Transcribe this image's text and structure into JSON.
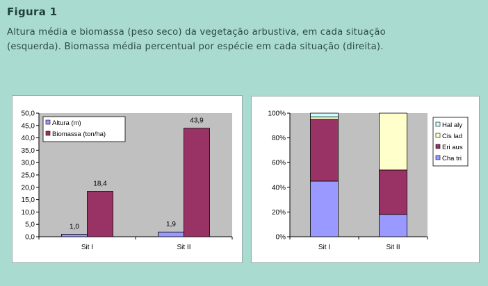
{
  "figure": {
    "title": "Figura 1",
    "caption_line1": "Altura média e biomassa (peso seco) da vegetação arbustiva, em cada situação",
    "caption_line2": "(esquerda). Biomassa média percentual por espécie em cada situação (direita)."
  },
  "colors": {
    "background": "#aadbd1",
    "plot_area": "#c0c0c0",
    "altura": "#9999ff",
    "biomassa": "#993366",
    "cha_tri": "#9999ff",
    "eri_aus": "#993366",
    "cis_lad": "#ffffcc",
    "hal_aly": "#ccffff"
  },
  "chart_data": [
    {
      "type": "bar",
      "categories": [
        "Sit I",
        "Sit II"
      ],
      "series": [
        {
          "name": "Altura (m)",
          "values": [
            1.0,
            1.9
          ],
          "labels": [
            "1,0",
            "1,9"
          ]
        },
        {
          "name": "Biomassa (ton/ha)",
          "values": [
            18.4,
            43.9
          ],
          "labels": [
            "18,4",
            "43,9"
          ]
        }
      ],
      "ylim": [
        0,
        50
      ],
      "yticks": [
        0,
        5,
        10,
        15,
        20,
        25,
        30,
        35,
        40,
        45,
        50
      ],
      "ytick_labels": [
        "0,0",
        "5,0",
        "10,0",
        "15,0",
        "20,0",
        "25,0",
        "30,0",
        "35,0",
        "40,0",
        "45,0",
        "50,0"
      ],
      "legend": "top-left",
      "grid": false
    },
    {
      "type": "bar",
      "stacked": true,
      "categories": [
        "Sit I",
        "Sit II"
      ],
      "series": [
        {
          "name": "Cha tri",
          "values": [
            45,
            18
          ]
        },
        {
          "name": "Eri aus",
          "values": [
            50,
            36
          ]
        },
        {
          "name": "Cis lad",
          "values": [
            2,
            46
          ]
        },
        {
          "name": "Hal aly",
          "values": [
            3,
            0
          ]
        }
      ],
      "ylim": [
        0,
        100
      ],
      "yticks": [
        0,
        20,
        40,
        60,
        80,
        100
      ],
      "ytick_labels": [
        "0%",
        "20%",
        "40%",
        "60%",
        "80%",
        "100%"
      ],
      "legend": "right",
      "grid": false
    }
  ]
}
